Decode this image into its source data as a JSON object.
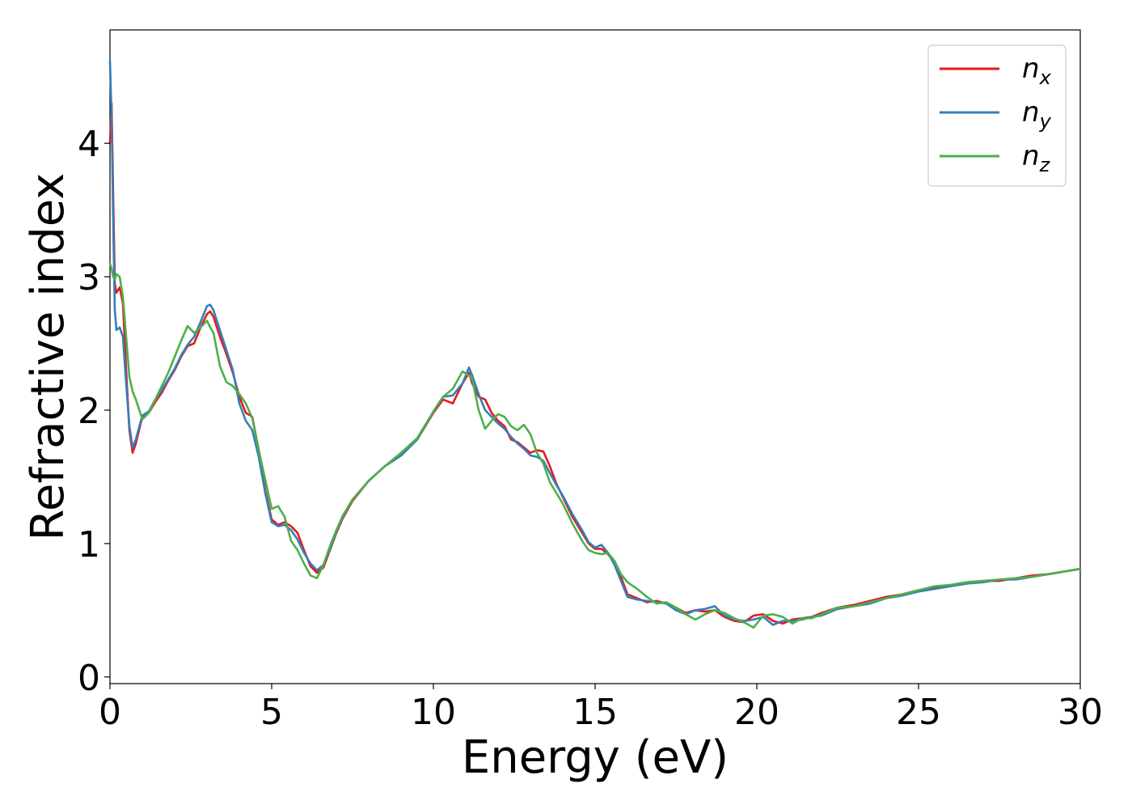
{
  "chart_data": {
    "type": "line",
    "title": "",
    "xlabel": "Energy (eV)",
    "ylabel": "Refractive index",
    "xlim": [
      0,
      30
    ],
    "ylim": [
      -0.05,
      4.85
    ],
    "xticks": [
      0,
      5,
      10,
      15,
      20,
      25,
      30
    ],
    "xtick_labels": [
      "0",
      "5",
      "10",
      "15",
      "20",
      "25",
      "30"
    ],
    "yticks": [
      0,
      1,
      2,
      3,
      4
    ],
    "ytick_labels": [
      "0",
      "1",
      "2",
      "3",
      "4"
    ],
    "grid": false,
    "legend_position": "top-right",
    "series": [
      {
        "name": "n_x",
        "label_base": "n",
        "label_sub": "x",
        "color": "#e41a1c",
        "x": [
          0,
          0.05,
          0.1,
          0.15,
          0.2,
          0.3,
          0.4,
          0.5,
          0.6,
          0.7,
          0.8,
          1.0,
          1.2,
          1.4,
          1.6,
          1.8,
          2.0,
          2.2,
          2.4,
          2.6,
          2.8,
          3.0,
          3.1,
          3.2,
          3.4,
          3.6,
          3.8,
          4.0,
          4.2,
          4.4,
          4.6,
          4.8,
          5.0,
          5.2,
          5.4,
          5.6,
          5.8,
          6.0,
          6.2,
          6.4,
          6.6,
          6.8,
          7.0,
          7.2,
          7.5,
          8.0,
          8.5,
          9.0,
          9.5,
          10.0,
          10.3,
          10.6,
          10.9,
          11.1,
          11.2,
          11.4,
          11.6,
          11.8,
          12.0,
          12.2,
          12.4,
          12.6,
          12.8,
          13.0,
          13.2,
          13.4,
          13.6,
          13.8,
          14.0,
          14.3,
          14.6,
          14.8,
          15.0,
          15.2,
          15.4,
          15.6,
          15.8,
          16.0,
          16.3,
          16.6,
          16.9,
          17.2,
          17.5,
          17.8,
          18.1,
          18.4,
          18.7,
          19.0,
          19.3,
          19.6,
          19.9,
          20.2,
          20.5,
          20.8,
          21.1,
          21.4,
          21.7,
          22.0,
          22.5,
          23.0,
          23.5,
          24.0,
          24.5,
          25.0,
          25.5,
          26.0,
          26.5,
          27.0,
          27.5,
          28.0,
          28.5,
          29.0,
          29.5,
          30.0
        ],
        "y": [
          4.0,
          4.3,
          3.6,
          2.95,
          2.88,
          2.92,
          2.8,
          2.3,
          1.85,
          1.68,
          1.75,
          1.95,
          1.98,
          2.06,
          2.13,
          2.22,
          2.3,
          2.4,
          2.48,
          2.5,
          2.62,
          2.72,
          2.74,
          2.7,
          2.55,
          2.42,
          2.28,
          2.1,
          1.98,
          1.95,
          1.7,
          1.4,
          1.18,
          1.14,
          1.16,
          1.13,
          1.08,
          0.95,
          0.83,
          0.78,
          0.82,
          0.95,
          1.08,
          1.19,
          1.32,
          1.47,
          1.58,
          1.66,
          1.78,
          1.98,
          2.08,
          2.05,
          2.2,
          2.28,
          2.2,
          2.1,
          2.08,
          1.98,
          1.92,
          1.88,
          1.78,
          1.76,
          1.72,
          1.68,
          1.7,
          1.69,
          1.58,
          1.45,
          1.35,
          1.2,
          1.08,
          1.0,
          0.96,
          0.96,
          0.92,
          0.86,
          0.75,
          0.62,
          0.59,
          0.56,
          0.57,
          0.55,
          0.52,
          0.48,
          0.5,
          0.49,
          0.5,
          0.45,
          0.42,
          0.41,
          0.46,
          0.47,
          0.42,
          0.4,
          0.43,
          0.44,
          0.45,
          0.48,
          0.52,
          0.54,
          0.57,
          0.6,
          0.62,
          0.65,
          0.67,
          0.69,
          0.71,
          0.72,
          0.72,
          0.74,
          0.76,
          0.77,
          0.79,
          0.81
        ]
      },
      {
        "name": "n_y",
        "label_base": "n",
        "label_sub": "y",
        "color": "#377eb8",
        "x": [
          0,
          0.05,
          0.1,
          0.15,
          0.2,
          0.3,
          0.4,
          0.5,
          0.6,
          0.7,
          0.8,
          1.0,
          1.2,
          1.4,
          1.6,
          1.8,
          2.0,
          2.2,
          2.4,
          2.6,
          2.8,
          3.0,
          3.1,
          3.2,
          3.4,
          3.6,
          3.8,
          4.0,
          4.2,
          4.4,
          4.6,
          4.8,
          5.0,
          5.2,
          5.4,
          5.6,
          5.8,
          6.0,
          6.2,
          6.4,
          6.6,
          6.8,
          7.0,
          7.2,
          7.5,
          8.0,
          8.5,
          9.0,
          9.5,
          10.0,
          10.3,
          10.6,
          10.9,
          11.1,
          11.2,
          11.4,
          11.6,
          11.8,
          12.0,
          12.2,
          12.4,
          12.6,
          12.8,
          13.0,
          13.2,
          13.4,
          13.6,
          13.8,
          14.0,
          14.3,
          14.6,
          14.8,
          15.0,
          15.2,
          15.4,
          15.6,
          15.8,
          16.0,
          16.3,
          16.6,
          16.9,
          17.2,
          17.5,
          17.8,
          18.1,
          18.4,
          18.7,
          19.0,
          19.3,
          19.6,
          19.9,
          20.2,
          20.5,
          20.8,
          21.1,
          21.4,
          21.7,
          22.0,
          22.5,
          23.0,
          23.5,
          24.0,
          24.5,
          25.0,
          25.5,
          26.0,
          26.5,
          27.0,
          27.5,
          28.0,
          28.5,
          29.0,
          29.5,
          30.0
        ],
        "y": [
          4.62,
          4.2,
          3.4,
          2.75,
          2.6,
          2.62,
          2.55,
          2.2,
          1.88,
          1.72,
          1.78,
          1.96,
          1.99,
          2.08,
          2.15,
          2.23,
          2.31,
          2.41,
          2.49,
          2.55,
          2.66,
          2.78,
          2.79,
          2.75,
          2.6,
          2.45,
          2.3,
          2.05,
          1.92,
          1.85,
          1.65,
          1.38,
          1.16,
          1.13,
          1.14,
          1.1,
          1.03,
          0.93,
          0.85,
          0.8,
          0.84,
          0.96,
          1.09,
          1.2,
          1.33,
          1.47,
          1.58,
          1.66,
          1.78,
          1.99,
          2.1,
          2.11,
          2.2,
          2.32,
          2.26,
          2.12,
          2.0,
          1.95,
          1.9,
          1.86,
          1.8,
          1.75,
          1.71,
          1.66,
          1.65,
          1.62,
          1.53,
          1.44,
          1.36,
          1.22,
          1.1,
          1.01,
          0.97,
          0.99,
          0.93,
          0.84,
          0.72,
          0.6,
          0.58,
          0.57,
          0.56,
          0.55,
          0.5,
          0.47,
          0.5,
          0.51,
          0.53,
          0.46,
          0.43,
          0.42,
          0.43,
          0.45,
          0.39,
          0.42,
          0.42,
          0.43,
          0.45,
          0.46,
          0.51,
          0.53,
          0.55,
          0.59,
          0.61,
          0.64,
          0.66,
          0.68,
          0.7,
          0.71,
          0.73,
          0.73,
          0.75,
          0.77,
          0.79,
          0.81
        ]
      },
      {
        "name": "n_z",
        "label_base": "n",
        "label_sub": "z",
        "color": "#4daf4a",
        "x": [
          0,
          0.05,
          0.1,
          0.15,
          0.2,
          0.3,
          0.4,
          0.5,
          0.6,
          0.7,
          0.8,
          1.0,
          1.2,
          1.4,
          1.6,
          1.8,
          2.0,
          2.2,
          2.4,
          2.6,
          2.8,
          3.0,
          3.1,
          3.2,
          3.4,
          3.6,
          3.8,
          4.0,
          4.2,
          4.4,
          4.6,
          4.8,
          5.0,
          5.2,
          5.4,
          5.6,
          5.8,
          6.0,
          6.2,
          6.4,
          6.6,
          6.8,
          7.0,
          7.2,
          7.5,
          8.0,
          8.5,
          9.0,
          9.5,
          10.0,
          10.3,
          10.6,
          10.9,
          11.1,
          11.2,
          11.4,
          11.6,
          11.8,
          12.0,
          12.2,
          12.4,
          12.6,
          12.8,
          13.0,
          13.2,
          13.4,
          13.6,
          13.8,
          14.0,
          14.3,
          14.6,
          14.8,
          15.0,
          15.2,
          15.4,
          15.6,
          15.8,
          16.0,
          16.3,
          16.6,
          16.9,
          17.2,
          17.5,
          17.8,
          18.1,
          18.4,
          18.7,
          19.0,
          19.3,
          19.6,
          19.9,
          20.2,
          20.5,
          20.8,
          21.1,
          21.4,
          21.7,
          22.0,
          22.5,
          23.0,
          23.5,
          24.0,
          24.5,
          25.0,
          25.5,
          26.0,
          26.5,
          27.0,
          27.5,
          28.0,
          28.5,
          29.0,
          29.5,
          30.0
        ],
        "y": [
          3.1,
          3.06,
          3.0,
          2.98,
          3.02,
          3.0,
          2.85,
          2.55,
          2.25,
          2.14,
          2.08,
          1.93,
          1.98,
          2.08,
          2.18,
          2.28,
          2.4,
          2.52,
          2.63,
          2.58,
          2.62,
          2.67,
          2.62,
          2.58,
          2.33,
          2.21,
          2.18,
          2.12,
          2.05,
          1.94,
          1.7,
          1.48,
          1.26,
          1.28,
          1.2,
          1.02,
          0.95,
          0.85,
          0.76,
          0.74,
          0.84,
          0.98,
          1.1,
          1.21,
          1.33,
          1.47,
          1.58,
          1.68,
          1.79,
          1.99,
          2.1,
          2.16,
          2.29,
          2.26,
          2.23,
          2.0,
          1.86,
          1.92,
          1.97,
          1.95,
          1.88,
          1.85,
          1.89,
          1.82,
          1.68,
          1.6,
          1.46,
          1.38,
          1.3,
          1.15,
          1.02,
          0.95,
          0.93,
          0.92,
          0.93,
          0.87,
          0.77,
          0.71,
          0.66,
          0.6,
          0.55,
          0.56,
          0.52,
          0.47,
          0.43,
          0.47,
          0.5,
          0.48,
          0.44,
          0.41,
          0.37,
          0.46,
          0.47,
          0.45,
          0.4,
          0.44,
          0.44,
          0.47,
          0.52,
          0.53,
          0.56,
          0.59,
          0.62,
          0.65,
          0.68,
          0.69,
          0.71,
          0.72,
          0.73,
          0.74,
          0.75,
          0.77,
          0.79,
          0.81
        ]
      }
    ]
  }
}
